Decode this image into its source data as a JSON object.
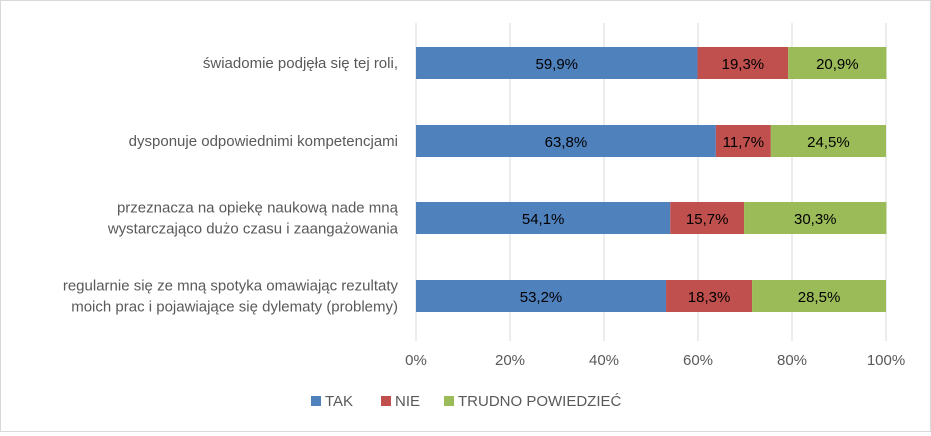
{
  "chart_data": {
    "type": "bar",
    "orientation": "horizontal",
    "stacked": true,
    "categories": [
      [
        "świadomie podjęła się tej roli,"
      ],
      [
        "dysponuje odpowiednimi kompetencjami"
      ],
      [
        "przeznacza na opiekę naukową nade mną",
        "wystarczająco dużo czasu i zaangażowania"
      ],
      [
        "regularnie się ze mną spotyka omawiając rezultaty",
        "moich prac i pojawiające się dylematy (problemy)"
      ]
    ],
    "series": [
      {
        "name": "TAK",
        "color": "#4f81bd",
        "values": [
          59.9,
          63.8,
          54.1,
          53.2
        ],
        "labels": [
          "59,9%",
          "63,8%",
          "54,1%",
          "53,2%"
        ]
      },
      {
        "name": "NIE",
        "color": "#c0504d",
        "values": [
          19.3,
          11.7,
          15.7,
          18.3
        ],
        "labels": [
          "19,3%",
          "11,7%",
          "15,7%",
          "18,3%"
        ]
      },
      {
        "name": "TRUDNO POWIEDZIEĆ",
        "color": "#9bbb59",
        "values": [
          20.9,
          24.5,
          30.3,
          28.5
        ],
        "labels": [
          "20,9%",
          "24,5%",
          "30,3%",
          "28,5%"
        ]
      }
    ],
    "xlim": [
      0,
      100
    ],
    "x_ticks": [
      0,
      20,
      40,
      60,
      80,
      100
    ],
    "x_tick_labels": [
      "0%",
      "20%",
      "40%",
      "60%",
      "80%",
      "100%"
    ],
    "grid": true,
    "legend": "bottom"
  }
}
